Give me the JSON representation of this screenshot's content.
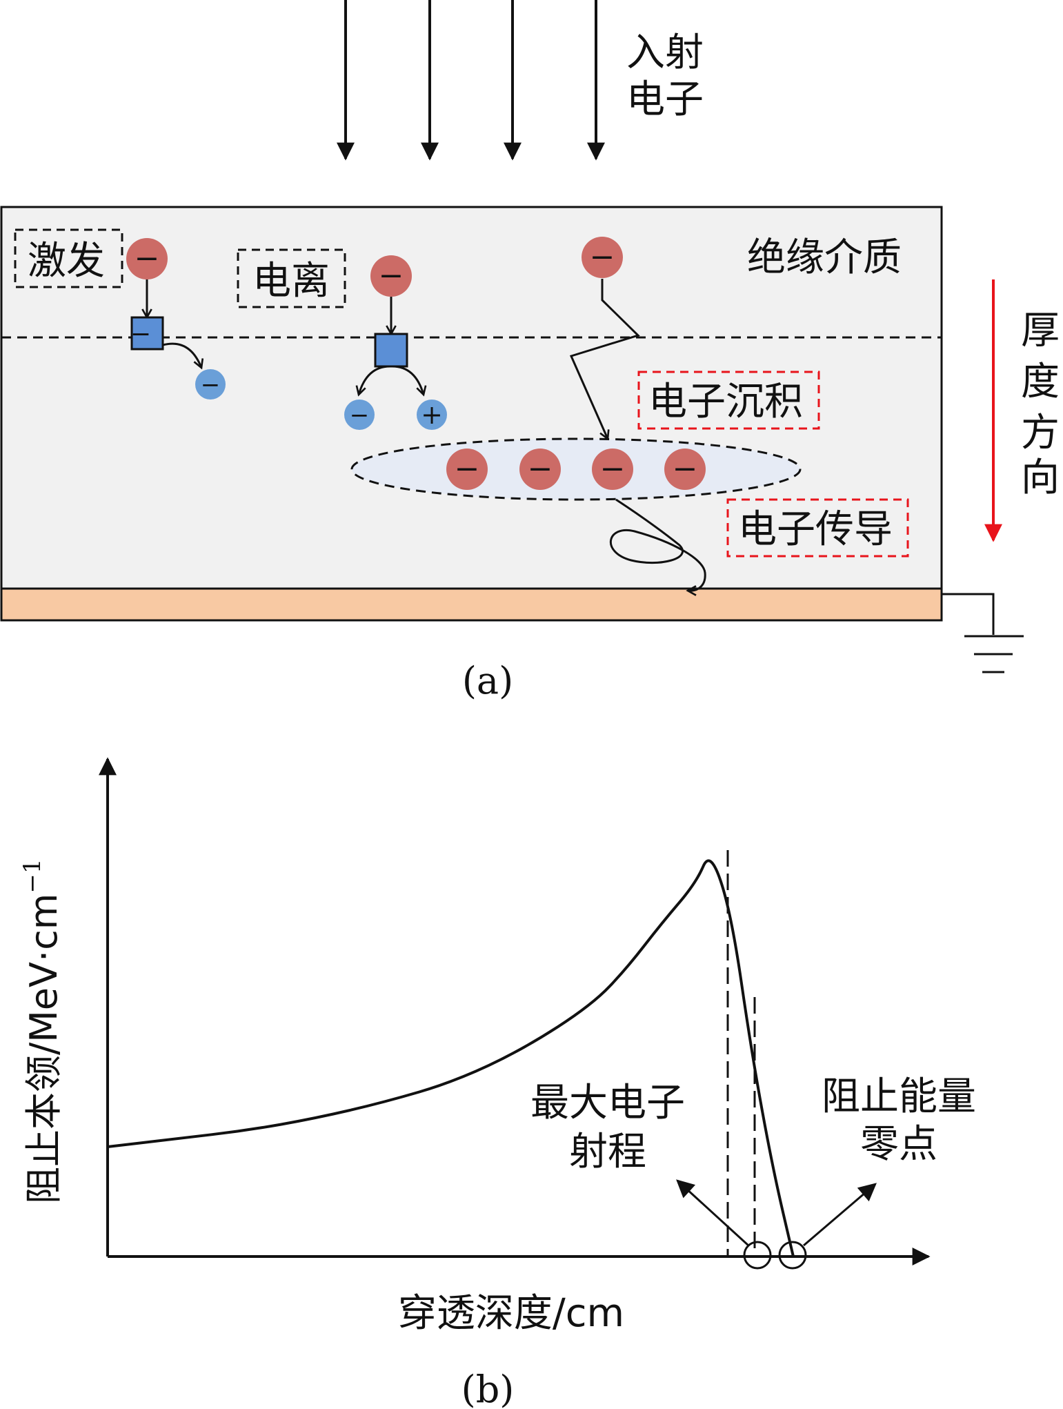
{
  "panel_a": {
    "incident_label_line1": "入射",
    "incident_label_line2": "电子",
    "excitation_label": "激发",
    "ionization_label": "电离",
    "medium_label": "绝缘介质",
    "deposition_label": "电子沉积",
    "conduction_label": "电子传导",
    "thickness_label": [
      "厚",
      "度",
      "方",
      "向"
    ],
    "caption": "(a)",
    "charge_negative": "−",
    "charge_positive": "+"
  },
  "panel_b": {
    "ylabel": "阻止本领/MeV·cm",
    "ylabel_superscript": "−1",
    "xlabel": "穿透深度/cm",
    "max_range_label_line1": "最大电子",
    "max_range_label_line2": "射程",
    "zero_point_label_line1": "阻止能量",
    "zero_point_label_line2": "零点",
    "caption": "(b)"
  },
  "colors": {
    "electron_red": "#cc6b66",
    "electron_blue": "#6a9fd8",
    "box_blue": "#5b8fd6",
    "medium_bg": "#f1f1f1",
    "substrate": "#f8c9a3",
    "ellipse_fill": "#e6ebf5",
    "red_arrow": "#e8141b",
    "red_dash": "#e8141b"
  },
  "chart_data": {
    "type": "line",
    "title": "",
    "xlabel": "穿透深度/cm",
    "ylabel": "阻止本领/MeV·cm−1",
    "grid": false,
    "x": [
      0,
      0.1,
      0.2,
      0.3,
      0.4,
      0.5,
      0.6,
      0.7,
      0.75,
      0.8,
      0.85,
      0.87,
      0.9,
      0.93,
      0.96,
      0.99
    ],
    "y": [
      0.27,
      0.29,
      0.31,
      0.34,
      0.38,
      0.43,
      0.51,
      0.62,
      0.71,
      0.82,
      0.92,
      1.0,
      0.85,
      0.5,
      0.22,
      0.0
    ],
    "annotations": [
      "最大电子射程",
      "阻止能量零点"
    ]
  }
}
